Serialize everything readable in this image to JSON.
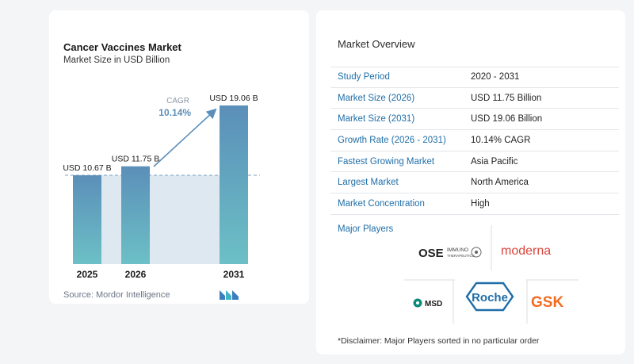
{
  "chart": {
    "title": "Cancer Vaccines Market",
    "subtitle": "Market Size in USD Billion",
    "source": "Source:  Mordor Intelligence",
    "cagr_label": "CAGR",
    "cagr_value": "10.14%"
  },
  "chart_data": {
    "type": "bar",
    "categories": [
      "2025",
      "2026",
      "2031"
    ],
    "values": [
      10.67,
      11.75,
      19.06
    ],
    "data_labels": [
      "USD 10.67 B",
      "USD 11.75 B",
      "USD 19.06 B"
    ],
    "title": "Cancer Vaccines Market",
    "subtitle": "Market Size in USD Billion",
    "xlabel": "",
    "ylabel": "",
    "ylim": [
      0,
      19.06
    ],
    "colors": {
      "bar_top": "#5b8fb9",
      "bar_bottom": "#6cc0c6",
      "shade": "#dde8f1",
      "arrow": "#5b8fb9",
      "cagr": "#5b8fb9"
    },
    "grid": false,
    "legend": "none"
  },
  "overview": {
    "title": "Market Overview",
    "rows": [
      {
        "key": "Study Period",
        "value": "2020 - 2031"
      },
      {
        "key": "Market Size (2026)",
        "value": "USD 11.75 Billion"
      },
      {
        "key": "Market Size (2031)",
        "value": "USD 19.06 Billion"
      },
      {
        "key": "Growth Rate (2026 - 2031)",
        "value": "10.14% CAGR"
      },
      {
        "key": "Fastest Growing Market",
        "value": "Asia Pacific"
      },
      {
        "key": "Largest Market",
        "value": "North America"
      },
      {
        "key": "Market Concentration",
        "value": "High"
      }
    ]
  },
  "players": {
    "label": "Major Players",
    "ose": {
      "main": "OSE",
      "sub1": "IMMUNO",
      "sub2": "THERAPEUTICS"
    },
    "moderna": "moderna",
    "msd": "MSD",
    "roche": "Roche",
    "gsk": "GSK"
  },
  "disclaimer": "*Disclaimer: Major Players sorted in no particular order"
}
